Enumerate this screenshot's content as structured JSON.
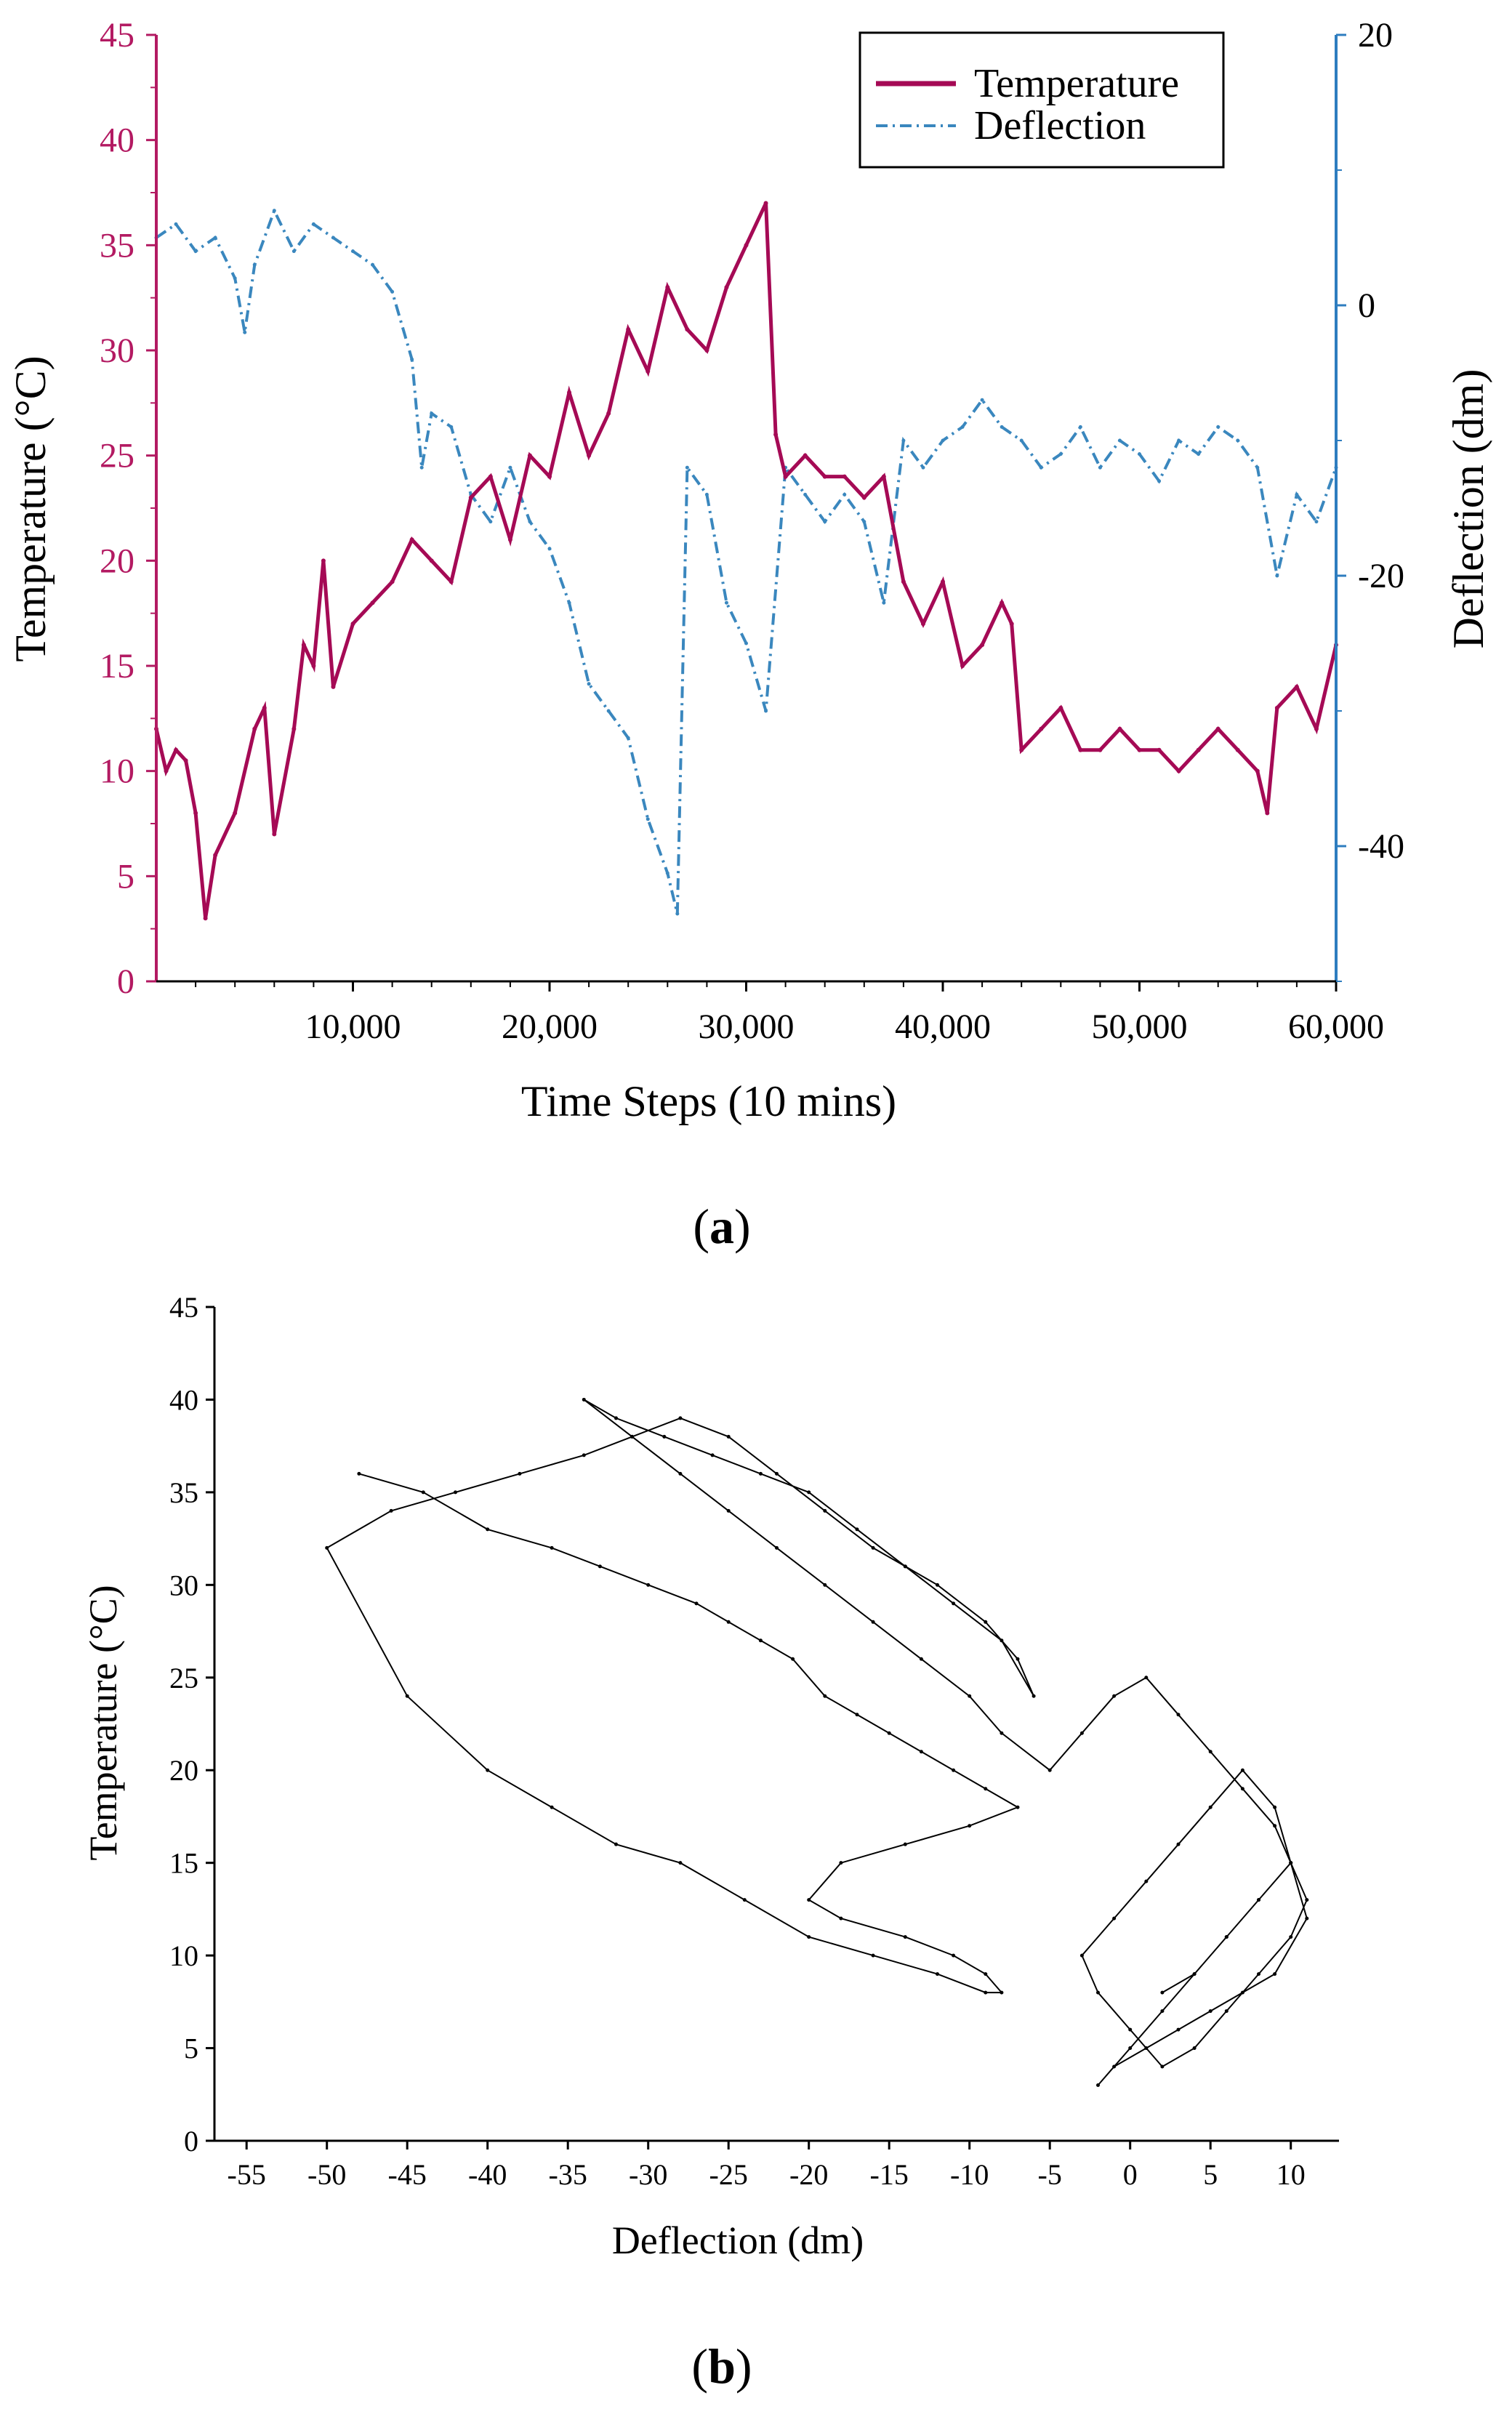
{
  "colors": {
    "temperature": "#A50A55",
    "deflection": "#3A87BE",
    "temp_axis": "#B31A62",
    "defl_axis": "#2E7DBF",
    "panel_b_line": "#000000"
  },
  "panels": {
    "a": {
      "label_open": "(",
      "label_letter": "a",
      "label_close": ")"
    },
    "b": {
      "label_open": "(",
      "label_letter": "b",
      "label_close": ")"
    }
  },
  "chart_data": [
    {
      "panel": "a",
      "type": "line",
      "title": "",
      "xlabel": "Time Steps (10 mins)",
      "ylabel": "Temperature (°C)",
      "y2label": "Deflection (dm)",
      "xlim": [
        0,
        60000
      ],
      "ylim": [
        0,
        45
      ],
      "y2lim": [
        -50,
        20
      ],
      "xticks": [
        10000,
        20000,
        30000,
        40000,
        50000,
        60000
      ],
      "xtick_labels": [
        "10,000",
        "20,000",
        "30,000",
        "40,000",
        "50,000",
        "60,000"
      ],
      "yticks": [
        0,
        5,
        10,
        15,
        20,
        25,
        30,
        35,
        40,
        45
      ],
      "y2ticks": [
        -40,
        -20,
        0,
        20
      ],
      "legend": [
        "Temperature",
        "Deflection"
      ],
      "legend_position": "top-right",
      "series": [
        {
          "name": "Temperature",
          "axis": "left",
          "style": "solid",
          "x": [
            0,
            500,
            1000,
            1500,
            2000,
            2500,
            3000,
            4000,
            5000,
            5500,
            6000,
            7000,
            7500,
            8000,
            8500,
            9000,
            10000,
            11000,
            12000,
            13000,
            14000,
            15000,
            16000,
            17000,
            18000,
            19000,
            20000,
            21000,
            22000,
            23000,
            24000,
            25000,
            26000,
            27000,
            28000,
            29000,
            30000,
            31000,
            31500,
            32000,
            33000,
            34000,
            35000,
            36000,
            37000,
            38000,
            39000,
            40000,
            41000,
            42000,
            43000,
            43500,
            44000,
            45000,
            46000,
            47000,
            48000,
            49000,
            50000,
            51000,
            52000,
            53000,
            54000,
            55000,
            56000,
            56500,
            57000,
            58000,
            59000,
            60000
          ],
          "values": [
            12,
            10,
            11,
            10.5,
            8,
            3,
            6,
            8,
            12,
            13,
            7,
            12,
            16,
            15,
            20,
            14,
            17,
            18,
            19,
            21,
            20,
            19,
            23,
            24,
            21,
            25,
            24,
            28,
            25,
            27,
            31,
            29,
            33,
            31,
            30,
            33,
            35,
            37,
            26,
            24,
            25,
            24,
            24,
            23,
            24,
            19,
            17,
            19,
            15,
            16,
            18,
            17,
            11,
            12,
            13,
            11,
            11,
            12,
            11,
            11,
            10,
            11,
            12,
            11,
            10,
            8,
            13,
            14,
            12,
            16
          ]
        },
        {
          "name": "Deflection",
          "axis": "right",
          "style": "dash-dot",
          "x": [
            0,
            1000,
            2000,
            3000,
            4000,
            4500,
            5000,
            6000,
            7000,
            8000,
            9000,
            10000,
            11000,
            12000,
            13000,
            13500,
            14000,
            15000,
            16000,
            17000,
            18000,
            19000,
            20000,
            21000,
            22000,
            23000,
            24000,
            25000,
            26000,
            26500,
            27000,
            28000,
            29000,
            30000,
            31000,
            32000,
            33000,
            34000,
            35000,
            36000,
            37000,
            38000,
            39000,
            40000,
            41000,
            42000,
            43000,
            44000,
            45000,
            46000,
            47000,
            48000,
            49000,
            50000,
            51000,
            52000,
            53000,
            54000,
            55000,
            56000,
            57000,
            58000,
            59000,
            60000
          ],
          "values": [
            5,
            6,
            4,
            5,
            2,
            -2,
            3,
            7,
            4,
            6,
            5,
            4,
            3,
            1,
            -4,
            -12,
            -8,
            -9,
            -14,
            -16,
            -12,
            -16,
            -18,
            -22,
            -28,
            -30,
            -32,
            -38,
            -42,
            -45,
            -12,
            -14,
            -22,
            -25,
            -30,
            -12,
            -14,
            -16,
            -14,
            -16,
            -22,
            -10,
            -12,
            -10,
            -9,
            -7,
            -9,
            -10,
            -12,
            -11,
            -9,
            -12,
            -10,
            -11,
            -13,
            -10,
            -11,
            -9,
            -10,
            -12,
            -20,
            -14,
            -16,
            -12
          ]
        }
      ]
    },
    {
      "panel": "b",
      "type": "line",
      "title": "",
      "xlabel": "Deflection (dm)",
      "ylabel": "Temperature (°C)",
      "xlim": [
        -57,
        13
      ],
      "ylim": [
        0,
        45
      ],
      "xticks": [
        -55,
        -50,
        -45,
        -40,
        -35,
        -30,
        -25,
        -20,
        -15,
        -10,
        -5,
        0,
        5,
        10
      ],
      "xtick_labels": [
        "-55",
        "-50",
        "-45",
        "-40",
        "-35",
        "-30",
        "-25",
        "-20",
        "-15",
        "-10",
        "-5",
        "0",
        "5",
        "10"
      ],
      "yticks": [
        0,
        5,
        10,
        15,
        20,
        25,
        30,
        35,
        40,
        45
      ],
      "series": [
        {
          "name": "Temperature vs Deflection",
          "x": [
            -48,
            -44,
            -40,
            -36,
            -33,
            -30,
            -27,
            -25,
            -23,
            -21,
            -19,
            -17,
            -15,
            -13,
            -11,
            -9,
            -7,
            -10,
            -14,
            -18,
            -20,
            -18,
            -14,
            -11,
            -9,
            -8,
            -9,
            -12,
            -16,
            -20,
            -24,
            -28,
            -32,
            -36,
            -40,
            -45,
            -50,
            -46,
            -42,
            -38,
            -34,
            -31,
            -28,
            -25,
            -22,
            -19,
            -16,
            -14,
            -12,
            -9,
            -7,
            -6,
            -8,
            -11,
            -14,
            -17,
            -20,
            -23,
            -26,
            -29,
            -32,
            -34,
            -31,
            -28,
            -25,
            -22,
            -19,
            -16,
            -13,
            -10,
            -8,
            -5,
            -3,
            -1,
            1,
            3,
            5,
            7,
            9,
            10,
            11,
            10,
            8,
            6,
            4,
            2,
            0,
            -2,
            -3,
            -1,
            1,
            3,
            5,
            7,
            9,
            10,
            11,
            9,
            7,
            5,
            3,
            1,
            -1,
            -2,
            0,
            2,
            4,
            6,
            8,
            10,
            8,
            6,
            4,
            2
          ],
          "values": [
            36,
            35,
            33,
            32,
            31,
            30,
            29,
            28,
            27,
            26,
            24,
            23,
            22,
            21,
            20,
            19,
            18,
            17,
            16,
            15,
            13,
            12,
            11,
            10,
            9,
            8,
            8,
            9,
            10,
            11,
            13,
            15,
            16,
            18,
            20,
            24,
            32,
            34,
            35,
            36,
            37,
            38,
            39,
            38,
            36,
            34,
            32,
            31,
            30,
            28,
            26,
            24,
            27,
            29,
            31,
            33,
            35,
            36,
            37,
            38,
            39,
            40,
            38,
            36,
            34,
            32,
            30,
            28,
            26,
            24,
            22,
            20,
            22,
            24,
            25,
            23,
            21,
            19,
            17,
            15,
            13,
            11,
            9,
            7,
            5,
            4,
            6,
            8,
            10,
            12,
            14,
            16,
            18,
            20,
            18,
            15,
            12,
            9,
            8,
            7,
            6,
            5,
            4,
            3,
            5,
            7,
            9,
            11,
            13,
            15,
            13,
            11,
            9,
            8
          ]
        }
      ]
    }
  ]
}
